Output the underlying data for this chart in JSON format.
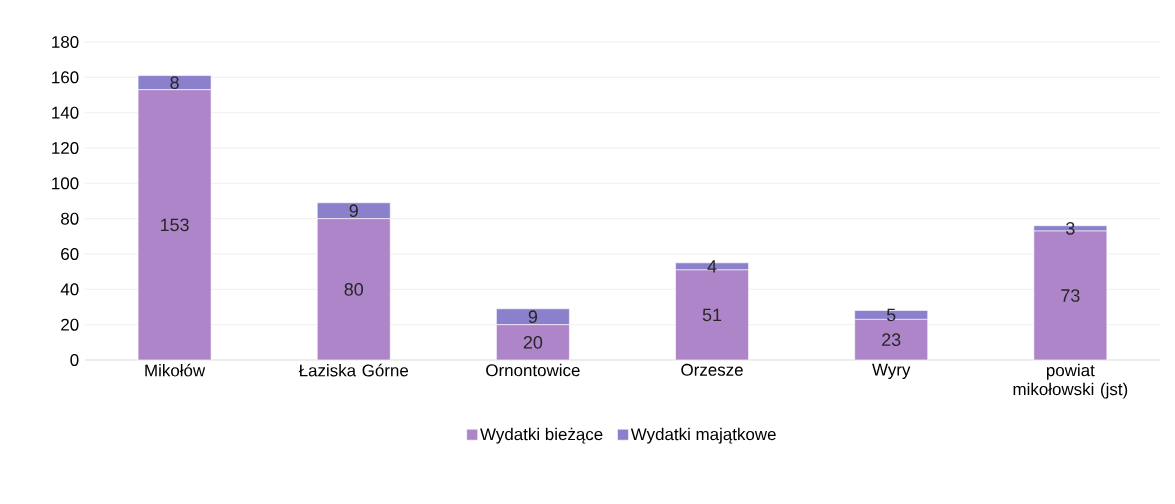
{
  "chart_data": {
    "type": "bar",
    "stacked": true,
    "categories": [
      "Mikołów",
      "Łaziska Górne",
      "Ornontowice",
      "Orzesze",
      "Wyry",
      "powiat mikołowski (jst)"
    ],
    "series": [
      {
        "name": "Wydatki bieżące",
        "color": "#ae85c8",
        "values": [
          153,
          80,
          20,
          51,
          23,
          73
        ]
      },
      {
        "name": "Wydatki majątkowe",
        "color": "#8a80cc",
        "values": [
          8,
          9,
          9,
          4,
          5,
          3
        ]
      }
    ],
    "ylim": [
      0,
      180
    ],
    "yticks": [
      0,
      20,
      40,
      60,
      80,
      100,
      120,
      140,
      160,
      180
    ],
    "grid": "y",
    "legend": "bottom",
    "data_labels": true
  }
}
